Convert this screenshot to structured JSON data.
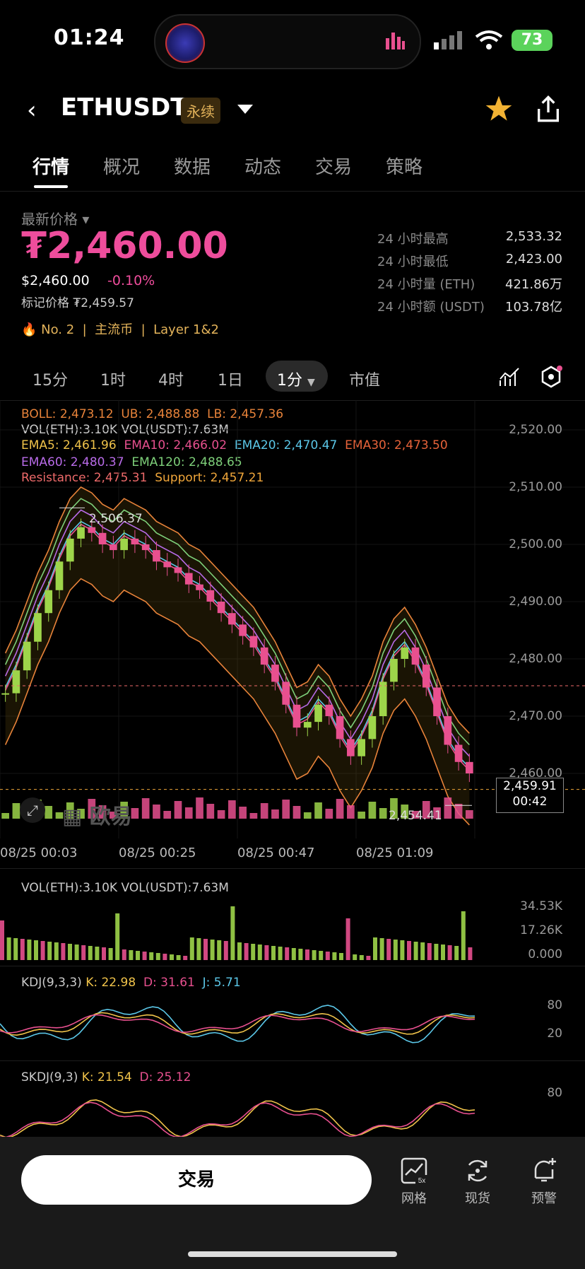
{
  "status_bar": {
    "time": "01:24",
    "battery": "73"
  },
  "header": {
    "symbol": "ETHUSDT",
    "contract_tag": "永续"
  },
  "tabs": [
    "行情",
    "概况",
    "数据",
    "动态",
    "交易",
    "策略"
  ],
  "price": {
    "label": "最新价格",
    "last": "₮2,460.00",
    "usd": "$2,460.00",
    "change": "-0.10%",
    "mark_label": "标记价格",
    "mark_value": "₮2,459.57"
  },
  "stats": [
    {
      "label": "24 小时最高",
      "value": "2,533.32"
    },
    {
      "label": "24 小时最低",
      "value": "2,423.00"
    },
    {
      "label": "24 小时量 (ETH)",
      "value": "421.86万"
    },
    {
      "label": "24 小时额 (USDT)",
      "value": "103.78亿"
    }
  ],
  "rank": {
    "no": "No. 2",
    "tag1": "主流币",
    "tag2": "Layer 1&2"
  },
  "timeframes": [
    "15分",
    "1时",
    "4时",
    "1日",
    "1分",
    "市值"
  ],
  "indicators": {
    "boll": "BOLL: 2,473.12",
    "ub": "UB: 2,488.88",
    "lb": "LB: 2,457.36",
    "vol": "VOL(ETH):3.10K VOL(USDT):7.63M",
    "ema5": "EMA5: 2,461.96",
    "ema10": "EMA10: 2,466.02",
    "ema20": "EMA20: 2,470.47",
    "ema30": "EMA30: 2,473.50",
    "ema60": "EMA60: 2,480.37",
    "ema120": "EMA120: 2,488.65",
    "resistance": "Resistance: 2,475.31",
    "support": "Support: 2,457.21"
  },
  "chart": {
    "y_ticks": [
      "2,520.00",
      "2,510.00",
      "2,500.00",
      "2,490.00",
      "2,480.00",
      "2,470.00",
      "2,460.00"
    ],
    "x_ticks": [
      "08/25 00:03",
      "08/25 00:25",
      "08/25 00:47",
      "08/25 01:09"
    ],
    "high_mark": "2,506.37",
    "low_mark": "2,454.41",
    "current_price": "2,459.91",
    "countdown": "00:42",
    "watermark": "欧易"
  },
  "volume_panel": {
    "title": "VOL(ETH):3.10K VOL(USDT):7.63M",
    "ticks": [
      "34.53K",
      "17.26K",
      "0.000"
    ]
  },
  "kdj_panel": {
    "title": "KDJ(9,3,3)",
    "k": "K: 22.98",
    "d": "D: 31.61",
    "j": "J: 5.71",
    "ticks": [
      "80",
      "20"
    ]
  },
  "skdj_panel": {
    "title": "SKDJ(9,3)",
    "k": "K: 21.54",
    "d": "D: 25.12",
    "ticks": [
      "80"
    ]
  },
  "bottom": {
    "trade": "交易",
    "grid": "网格",
    "spot": "现货",
    "alert": "预警",
    "grid_badge": "5x"
  },
  "colors": {
    "up": "#9ed54a",
    "down": "#e8508f",
    "accent": "#ee4d9c",
    "gold": "#e3b35a"
  }
}
